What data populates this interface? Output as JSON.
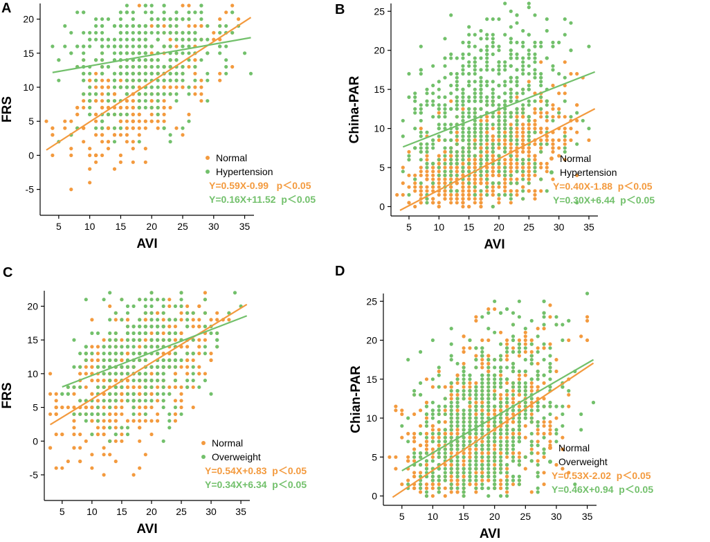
{
  "colors": {
    "normal": "#F39A3E",
    "group": "#72C06B"
  },
  "chart_data": [
    {
      "type": "scatter",
      "panel": "A",
      "xlabel": "AVI",
      "ylabel": "FRS",
      "xlim": [
        2,
        36.5
      ],
      "ylim": [
        -8.8,
        22.3
      ],
      "xticks": [
        5,
        10,
        15,
        20,
        25,
        30,
        35
      ],
      "yticks": [
        -5,
        0,
        5,
        10,
        15,
        20
      ],
      "series": [
        {
          "name": "Normal",
          "color": "#F39A3E",
          "seed": 11,
          "count": 360,
          "xrange": [
            3,
            36
          ],
          "ymin": -8,
          "ymax": 22,
          "slope": 0.59,
          "intercept": -0.99,
          "spread": 4.2,
          "integer_x": true,
          "integer_y": true
        },
        {
          "name": "Hypertension",
          "color": "#72C06B",
          "seed": 23,
          "count": 420,
          "xrange": [
            4,
            36
          ],
          "ymin": -7,
          "ymax": 22,
          "slope": 0.16,
          "intercept": 11.52,
          "spread": 4.6,
          "integer_x": true,
          "integer_y": true
        }
      ],
      "fits": [
        {
          "series": "Normal",
          "slope": 0.59,
          "intercept": -0.99,
          "x": [
            3,
            36
          ],
          "equation": "Y=0.59X-0.99   p＜0.05"
        },
        {
          "series": "Hypertension",
          "slope": 0.16,
          "intercept": 11.52,
          "x": [
            4,
            36
          ],
          "equation": "Y=0.16X+11.52  p＜0.05"
        }
      ],
      "legend": [
        "Normal",
        "Hypertension"
      ],
      "legend_position": "bottom-right"
    },
    {
      "type": "scatter",
      "panel": "B",
      "xlabel": "AVI",
      "ylabel": "China-PAR",
      "xlim": [
        2,
        36.5
      ],
      "ylim": [
        -1.2,
        26
      ],
      "xticks": [
        5,
        10,
        15,
        20,
        25,
        30,
        35
      ],
      "yticks": [
        0,
        5,
        10,
        15,
        20,
        25
      ],
      "series": [
        {
          "name": "Normal",
          "color": "#F39A3E",
          "seed": 37,
          "count": 900,
          "xrange": [
            3,
            36
          ],
          "ymin": 0,
          "ymax": 26,
          "slope": 0.4,
          "intercept": -1.88,
          "spread": 3.5,
          "integer_x": true,
          "integer_y": false
        },
        {
          "name": "Hypertension",
          "color": "#72C06B",
          "seed": 41,
          "count": 650,
          "xrange": [
            4,
            36
          ],
          "ymin": 0,
          "ymax": 26,
          "slope": 0.3,
          "intercept": 6.44,
          "spread": 6.0,
          "integer_x": true,
          "integer_y": false
        }
      ],
      "fits": [
        {
          "series": "Normal",
          "slope": 0.4,
          "intercept": -1.88,
          "x": [
            3.5,
            36
          ],
          "equation": "Y=0.40X-1.88  p＜0.05"
        },
        {
          "series": "Hypertension",
          "slope": 0.3,
          "intercept": 6.44,
          "x": [
            4,
            36
          ],
          "equation": "Y=0.30X+6.44  p＜0.05"
        }
      ],
      "legend": [
        "Normal",
        "Hypertension"
      ],
      "legend_position": "bottom-right"
    },
    {
      "type": "scatter",
      "panel": "C",
      "xlabel": "AVI",
      "ylabel": "FRS",
      "xlim": [
        2,
        36.5
      ],
      "ylim": [
        -8.8,
        22.3
      ],
      "xticks": [
        5,
        10,
        15,
        20,
        25,
        30,
        35
      ],
      "yticks": [
        -5,
        0,
        5,
        10,
        15,
        20
      ],
      "series": [
        {
          "name": "Normal",
          "color": "#F39A3E",
          "seed": 53,
          "count": 600,
          "xrange": [
            3,
            36
          ],
          "ymin": -8,
          "ymax": 22,
          "slope": 0.54,
          "intercept": 0.83,
          "spread": 4.4,
          "integer_x": true,
          "integer_y": true
        },
        {
          "name": "Overweight",
          "color": "#72C06B",
          "seed": 67,
          "count": 320,
          "xrange": [
            4,
            36
          ],
          "ymin": -7,
          "ymax": 22,
          "slope": 0.34,
          "intercept": 6.34,
          "spread": 4.8,
          "integer_x": true,
          "integer_y": true
        }
      ],
      "fits": [
        {
          "series": "Normal",
          "slope": 0.54,
          "intercept": 0.83,
          "x": [
            3,
            36
          ],
          "equation": "Y=0.54X+0.83  p＜0.05"
        },
        {
          "series": "Overweight",
          "slope": 0.34,
          "intercept": 6.34,
          "x": [
            5,
            36
          ],
          "equation": "Y=0.34X+6.34  p＜0.05"
        }
      ],
      "legend": [
        "Normal",
        "Overweight"
      ],
      "legend_position": "bottom-right"
    },
    {
      "type": "scatter",
      "panel": "D",
      "xlabel": "AVI",
      "ylabel": "Chian-PAR",
      "xlim": [
        2,
        36.5
      ],
      "ylim": [
        -1.2,
        26
      ],
      "xticks": [
        5,
        10,
        15,
        20,
        25,
        30,
        35
      ],
      "yticks": [
        0,
        5,
        10,
        15,
        20,
        25
      ],
      "series": [
        {
          "name": "Normal",
          "color": "#F39A3E",
          "seed": 71,
          "count": 800,
          "xrange": [
            3,
            36
          ],
          "ymin": 0,
          "ymax": 26,
          "slope": 0.53,
          "intercept": -2.02,
          "spread": 5.5,
          "integer_x": true,
          "integer_y": false
        },
        {
          "name": "Overweight",
          "color": "#72C06B",
          "seed": 83,
          "count": 700,
          "xrange": [
            4,
            36
          ],
          "ymin": 0,
          "ymax": 26,
          "slope": 0.46,
          "intercept": 0.94,
          "spread": 6.0,
          "integer_x": true,
          "integer_y": false
        }
      ],
      "fits": [
        {
          "series": "Normal",
          "slope": 0.53,
          "intercept": -2.02,
          "x": [
            3.5,
            36
          ],
          "equation": "Y=0.53X-2.02  p＜0.05"
        },
        {
          "series": "Overweight",
          "slope": 0.46,
          "intercept": 0.94,
          "x": [
            5,
            36
          ],
          "equation": "Y=0.46X+0.94  p＜0.05"
        }
      ],
      "legend": [
        "Normal",
        "Overweight"
      ],
      "legend_position": "bottom-right"
    }
  ]
}
